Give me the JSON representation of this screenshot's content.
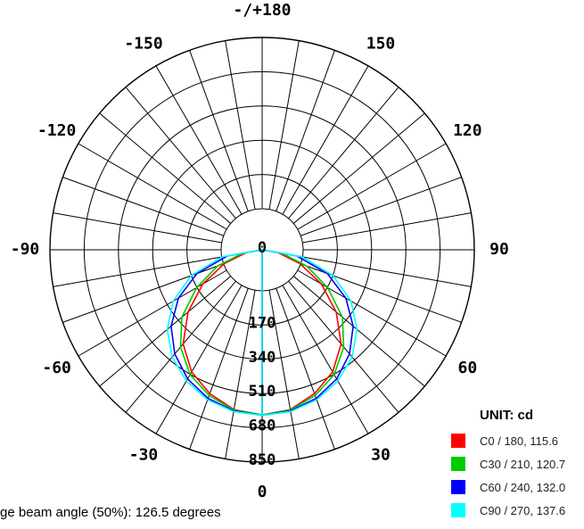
{
  "chart_data": {
    "type": "polar",
    "unit_label": "UNIT: cd",
    "angle_labels": [
      "-/+180",
      "150",
      "120",
      "90",
      "60",
      "30",
      "0",
      "-30",
      "-60",
      "-90",
      "-120",
      "-150"
    ],
    "angle_values": [
      180,
      150,
      120,
      90,
      60,
      30,
      0,
      -30,
      -60,
      -90,
      -120,
      -150
    ],
    "radial_ticks": [
      "0",
      "170",
      "340",
      "510",
      "680",
      "850"
    ],
    "radial_max": 850,
    "series": [
      {
        "name": "C0 / 180, 115.6",
        "color": "#ff0000",
        "angles": [
          0,
          10,
          20,
          30,
          40,
          50,
          60,
          70,
          80,
          90
        ],
        "values": [
          820,
          805,
          760,
          700,
          610,
          480,
          340,
          200,
          80,
          0
        ]
      },
      {
        "name": "C30 / 210, 120.7",
        "color": "#00cc00",
        "angles": [
          0,
          10,
          20,
          30,
          40,
          50,
          60,
          70,
          80,
          90
        ],
        "values": [
          820,
          808,
          770,
          715,
          630,
          520,
          375,
          235,
          100,
          0
        ]
      },
      {
        "name": "C60 / 240, 132.0",
        "color": "#0000ff",
        "angles": [
          0,
          10,
          20,
          30,
          40,
          50,
          60,
          70,
          80,
          90
        ],
        "values": [
          822,
          812,
          785,
          740,
          675,
          590,
          480,
          345,
          175,
          0
        ]
      },
      {
        "name": "C90 / 270, 137.6",
        "color": "#00ffff",
        "angles": [
          0,
          10,
          20,
          30,
          40,
          50,
          60,
          70,
          80,
          90
        ],
        "values": [
          822,
          815,
          792,
          752,
          695,
          615,
          510,
          375,
          200,
          0
        ]
      }
    ],
    "beam_text": "ge beam angle (50%): 126.5 degrees"
  }
}
